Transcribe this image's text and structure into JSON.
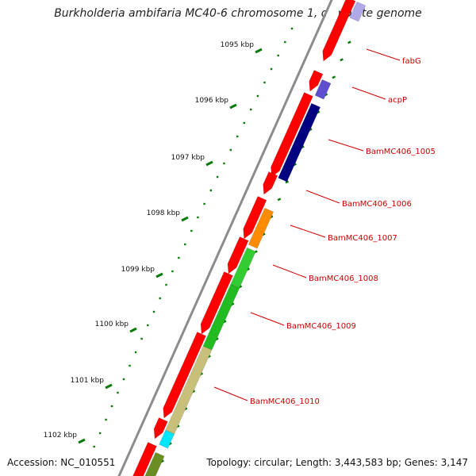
{
  "title": "Burkholderia ambifaria MC40-6 chromosome 1, complete genome",
  "footer": {
    "accession": "Accession: NC_010551",
    "summary": "Topology: circular; Length: 3,443,583 bp; Genes: 3,147"
  },
  "colors": {
    "backbone": "#8c8c8c",
    "tick": "#0a7a0a",
    "forward_cds": "#ff0000",
    "label": "#cc0000",
    "acpP": "#5f4fd0",
    "BamMC406_1005": "#000080",
    "BamMC406_1007": "#ff8c00",
    "BamMC406_1008": "#33cc33",
    "BamMC406_1009": "#22bb22",
    "BamMC406_1010": "#c8c07a",
    "small_rna": "#00e5ff",
    "olive": "#6b8e23"
  },
  "scale": {
    "unit": "kbp",
    "tick_labels": [
      "1095 kbp",
      "1096 kbp",
      "1097 kbp",
      "1098 kbp",
      "1099 kbp",
      "1100 kbp",
      "1101 kbp",
      "1102 kbp"
    ]
  },
  "genes": [
    {
      "name": "fabG",
      "label": "fabG"
    },
    {
      "name": "acpP",
      "label": "acpP"
    },
    {
      "name": "BamMC406_1005",
      "label": "BamMC406_1005"
    },
    {
      "name": "BamMC406_1006",
      "label": "BamMC406_1006"
    },
    {
      "name": "BamMC406_1007",
      "label": "BamMC406_1007"
    },
    {
      "name": "BamMC406_1008",
      "label": "BamMC406_1008"
    },
    {
      "name": "BamMC406_1009",
      "label": "BamMC406_1009"
    },
    {
      "name": "BamMC406_1010",
      "label": "BamMC406_1010"
    }
  ]
}
